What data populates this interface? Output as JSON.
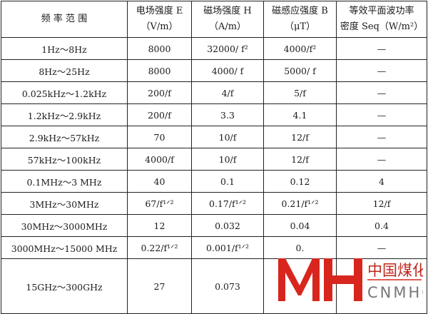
{
  "headers": [
    {
      "l1": "频 率 范 围",
      "l2": ""
    },
    {
      "l1": "电场强度 E",
      "l2": "（V/m）"
    },
    {
      "l1": "磁场强度 H",
      "l2": "（A/m）"
    },
    {
      "l1": "磁感应强度 B",
      "l2": "（μT）"
    },
    {
      "l1": "等效平面波功率",
      "l2": "密度 Seq（W/m²）"
    }
  ],
  "rows": [
    [
      "1Hz～8Hz",
      "8000",
      "32000/ f²",
      "4000/f²",
      "—"
    ],
    [
      "8Hz～25Hz",
      "8000",
      "4000/ f",
      "5000/ f",
      "—"
    ],
    [
      "0.025kHz～1.2kHz",
      "200/f",
      "4/f",
      "5/f",
      "—"
    ],
    [
      "1.2kHz～2.9kHz",
      "200/f",
      "3.3",
      "4.1",
      "—"
    ],
    [
      "2.9kHz～57kHz",
      "70",
      "10/f",
      "12/f",
      "—"
    ],
    [
      "57kHz～100kHz",
      "4000/f",
      "10/f",
      "12/f",
      "—"
    ],
    [
      "0.1MHz～3 MHz",
      "40",
      "0.1",
      "0.12",
      "4"
    ],
    [
      "3MHz～30MHz",
      "67/f¹ᐟ²",
      "0.17/f¹ᐟ²",
      "0.21/f¹ᐟ²",
      "12/f"
    ],
    [
      "30MHz～3000MHz",
      "12",
      "0.032",
      "0.04",
      "0.4"
    ],
    [
      "3000MHz～15000 MHz",
      "0.22/f¹ᐟ²",
      "0.001/f¹ᐟ²",
      "0.",
      "—"
    ],
    [
      "15GHz～300GHz",
      "27",
      "0.073",
      "",
      ""
    ]
  ],
  "watermark": {
    "logo": "MH",
    "cn": "中国煤化工",
    "en": "CNMHG",
    "color": "#d8261f"
  }
}
